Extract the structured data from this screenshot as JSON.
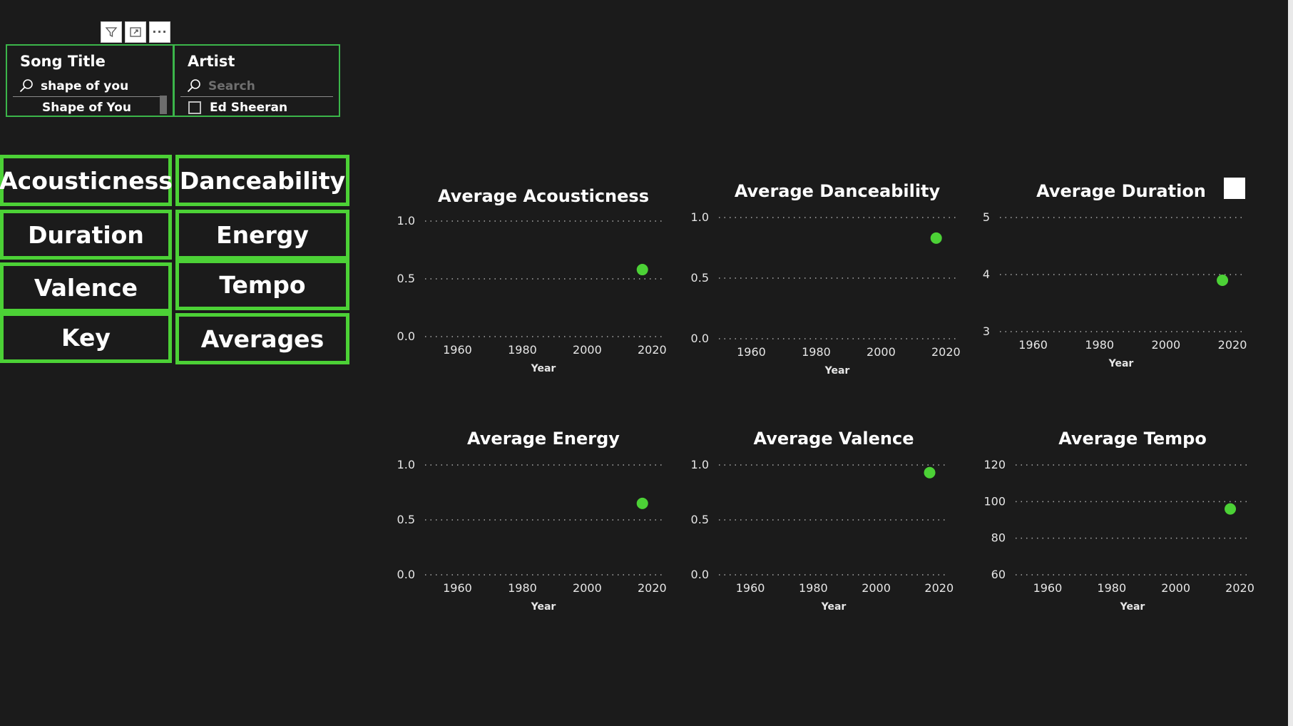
{
  "toolbar": {
    "buttons": [
      {
        "name": "filter-icon"
      },
      {
        "name": "focus-mode-icon"
      },
      {
        "name": "more-options-icon",
        "label": "···"
      }
    ]
  },
  "slicers": {
    "song": {
      "title": "Song Title",
      "search_value": "shape of you",
      "item": "Shape of You"
    },
    "artist": {
      "title": "Artist",
      "search_placeholder": "Search",
      "item": "Ed Sheeran",
      "checked": false
    }
  },
  "nav_buttons": [
    "Acousticness",
    "Danceability",
    "Duration",
    "Energy",
    "Valence",
    "Tempo",
    "Key",
    "Averages"
  ],
  "colors": {
    "accent": "#4cd136",
    "background": "#1b1b1b",
    "slicer_border": "#3bb54a"
  },
  "chart_data": [
    {
      "type": "scatter",
      "title": "Average Acousticness",
      "xlabel": "Year",
      "ylabel": "",
      "xticks": [
        1960,
        1980,
        2000,
        2020
      ],
      "yticks": [
        "0.0",
        "0.5",
        "1.0"
      ],
      "ylim": [
        0,
        1
      ],
      "points": [
        {
          "x": 2017,
          "y": 0.58
        }
      ]
    },
    {
      "type": "scatter",
      "title": "Average Danceability",
      "xlabel": "Year",
      "ylabel": "",
      "xticks": [
        1960,
        1980,
        2000,
        2020
      ],
      "yticks": [
        "0.0",
        "0.5",
        "1.0"
      ],
      "ylim": [
        0,
        1
      ],
      "points": [
        {
          "x": 2017,
          "y": 0.83
        }
      ]
    },
    {
      "type": "scatter",
      "title": "Average Duration",
      "xlabel": "Year",
      "ylabel": "",
      "xticks": [
        1960,
        1980,
        2000,
        2020
      ],
      "yticks": [
        "3",
        "4",
        "5"
      ],
      "ylim": [
        3,
        5
      ],
      "points": [
        {
          "x": 2017,
          "y": 3.9
        }
      ]
    },
    {
      "type": "scatter",
      "title": "Average Energy",
      "xlabel": "Year",
      "ylabel": "",
      "xticks": [
        1960,
        1980,
        2000,
        2020
      ],
      "yticks": [
        "0.0",
        "0.5",
        "1.0"
      ],
      "ylim": [
        0,
        1
      ],
      "points": [
        {
          "x": 2017,
          "y": 0.65
        }
      ]
    },
    {
      "type": "scatter",
      "title": "Average Valence",
      "xlabel": "Year",
      "ylabel": "",
      "xticks": [
        1960,
        1980,
        2000,
        2020
      ],
      "yticks": [
        "0.0",
        "0.5",
        "1.0"
      ],
      "ylim": [
        0,
        1
      ],
      "points": [
        {
          "x": 2017,
          "y": 0.93
        }
      ]
    },
    {
      "type": "scatter",
      "title": "Average Tempo",
      "xlabel": "Year",
      "ylabel": "",
      "xticks": [
        1960,
        1980,
        2000,
        2020
      ],
      "yticks": [
        "60",
        "80",
        "100",
        "120"
      ],
      "ylim": [
        60,
        120
      ],
      "points": [
        {
          "x": 2017,
          "y": 96
        }
      ]
    }
  ]
}
